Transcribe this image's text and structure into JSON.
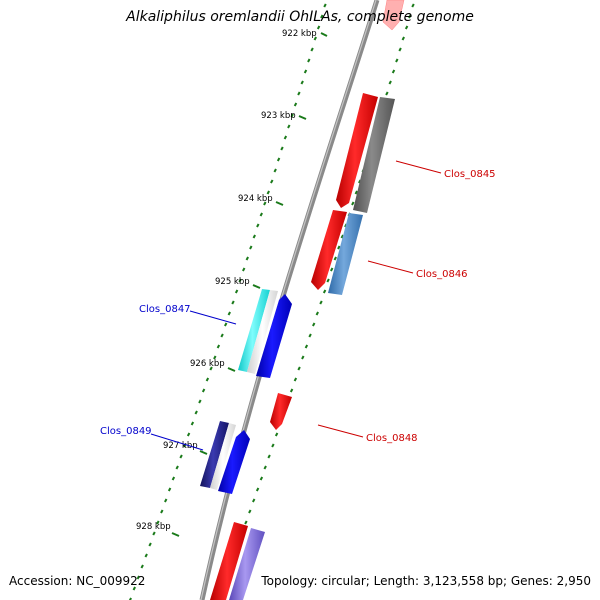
{
  "title": "Alkaliphilus oremlandii OhILAs, complete genome",
  "accession": "Accession: NC_009922",
  "summary": "Topology: circular; Length: 3,123,558 bp; Genes: 2,950",
  "ticks": [
    {
      "label": "922 kbp"
    },
    {
      "label": "923 kbp"
    },
    {
      "label": "924 kbp"
    },
    {
      "label": "925 kbp"
    },
    {
      "label": "926 kbp"
    },
    {
      "label": "927 kbp"
    },
    {
      "label": "928 kbp"
    }
  ],
  "genes": [
    {
      "label": "Clos_0845",
      "color": "#cc0000"
    },
    {
      "label": "Clos_0846",
      "color": "#cc0000"
    },
    {
      "label": "Clos_0847",
      "color": "#0000cc"
    },
    {
      "label": "Clos_0848",
      "color": "#cc0000"
    },
    {
      "label": "Clos_0849",
      "color": "#0000cc"
    }
  ],
  "colors": {
    "backbone": "#8a8a8a",
    "tick_green": "#1a7a1a",
    "forward_cds": "#ff0000",
    "reverse_cds": "#0000ff",
    "cog_gray": "#6e6e6e",
    "cog_steelblue": "#4a86c0",
    "cog_cyan": "#22e6e6",
    "cog_navy": "#1a1a80",
    "cog_purple": "#7b68d8"
  }
}
